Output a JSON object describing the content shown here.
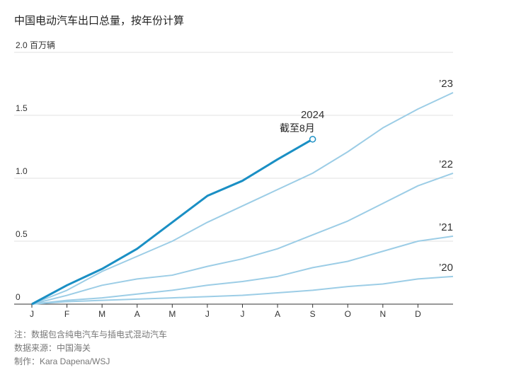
{
  "chart_data": {
    "type": "line",
    "title": "中国电动汽车出口总量，按年份计算",
    "x": [
      0,
      1,
      2,
      3,
      4,
      5,
      6,
      7,
      8,
      9,
      10,
      11,
      12
    ],
    "xlim": [
      0,
      12
    ],
    "xticks": [
      {
        "value": 0,
        "label": "J"
      },
      {
        "value": 1,
        "label": "F"
      },
      {
        "value": 2,
        "label": "M"
      },
      {
        "value": 3,
        "label": "A"
      },
      {
        "value": 4,
        "label": "M"
      },
      {
        "value": 5,
        "label": "J"
      },
      {
        "value": 6,
        "label": "J"
      },
      {
        "value": 7,
        "label": "A"
      },
      {
        "value": 8,
        "label": "S"
      },
      {
        "value": 9,
        "label": "O"
      },
      {
        "value": 10,
        "label": "N"
      },
      {
        "value": 11,
        "label": "D"
      }
    ],
    "ylim": [
      0,
      2.0
    ],
    "yticks": [
      0,
      0.5,
      {
        "value": 1.0,
        "label": "1.0"
      },
      1.5,
      {
        "value": 2.0,
        "label": "2.0 百万辆"
      }
    ],
    "grid": true,
    "series": [
      {
        "name": "2024",
        "color": "#1a8fc4",
        "values": [
          0,
          0.15,
          0.28,
          0.44,
          0.65,
          0.86,
          0.98,
          1.15,
          1.31,
          null,
          null,
          null,
          null
        ]
      },
      {
        "name": "’23",
        "color": "#9ccde6",
        "values": [
          0,
          0.11,
          0.26,
          0.38,
          0.5,
          0.65,
          0.78,
          0.91,
          1.04,
          1.21,
          1.4,
          1.55,
          1.68
        ]
      },
      {
        "name": "’22",
        "color": "#9ccde6",
        "values": [
          0,
          0.07,
          0.15,
          0.2,
          0.23,
          0.3,
          0.36,
          0.44,
          0.55,
          0.66,
          0.8,
          0.94,
          1.04
        ]
      },
      {
        "name": "’21",
        "color": "#9ccde6",
        "values": [
          0,
          0.03,
          0.05,
          0.08,
          0.11,
          0.15,
          0.18,
          0.22,
          0.29,
          0.34,
          0.42,
          0.5,
          0.54
        ]
      },
      {
        "name": "’20",
        "color": "#9ccde6",
        "values": [
          0,
          0.02,
          0.03,
          0.04,
          0.05,
          0.06,
          0.07,
          0.09,
          0.11,
          0.14,
          0.16,
          0.2,
          0.22
        ]
      }
    ],
    "annotation": "截至8月",
    "notes": [
      "注：数据包含纯电汽车与插电式混动汽车",
      "数据来源：中国海关",
      "制作：Kara Dapena/WSJ"
    ]
  }
}
